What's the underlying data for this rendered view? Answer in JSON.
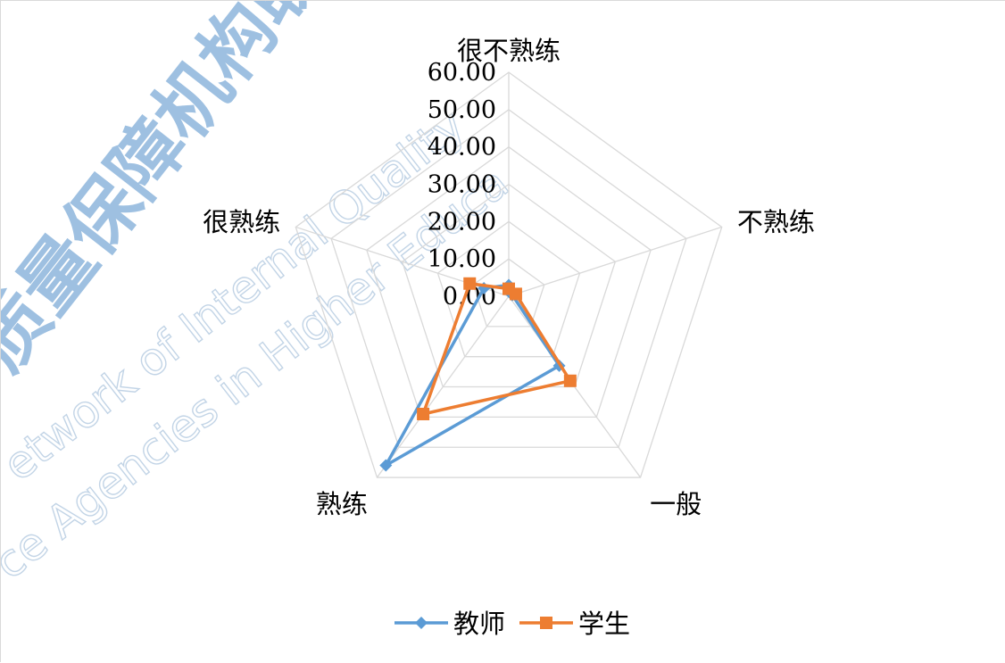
{
  "watermark": {
    "cn_text": "质量保障机构联",
    "en_line1": "etwork of Internal Quality",
    "en_line2": "ce Agencies in Higher Educa"
  },
  "chart_data": {
    "type": "radar",
    "title": "",
    "categories": [
      "很不熟练",
      "不熟练",
      "一般",
      "熟练",
      "很熟练"
    ],
    "ylim": [
      0,
      60
    ],
    "ticks": [
      "0.00",
      "10.00",
      "20.00",
      "30.00",
      "40.00",
      "50.00",
      "60.00"
    ],
    "series": [
      {
        "name": "教师",
        "values": [
          3,
          1,
          23,
          56,
          7
        ],
        "color": "#5b9bd5",
        "marker": "diamond"
      },
      {
        "name": "学生",
        "values": [
          2,
          2,
          28,
          39,
          11
        ],
        "color": "#ed7d31",
        "marker": "square"
      }
    ],
    "grid": true,
    "legend_position": "bottom"
  }
}
